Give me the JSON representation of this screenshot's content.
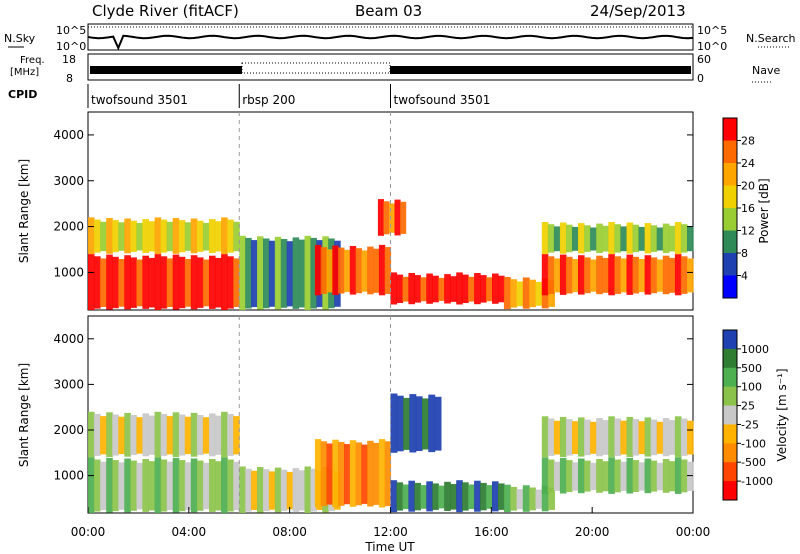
{
  "header": {
    "station": "Clyde River (fitACF)",
    "beam": "Beam 03",
    "date": "24/Sep/2013"
  },
  "noise_panel": {
    "left_label": "N.Sky",
    "right_label": "N.Search",
    "left_ticks": [
      "10^5",
      "10^0"
    ],
    "right_ticks": [
      "10^5",
      "10^0"
    ]
  },
  "freq_panel": {
    "left_label": "Freq.",
    "left_unit": "[MHz]",
    "right_label": "Nave",
    "left_ticks": [
      "18",
      "8"
    ],
    "right_ticks": [
      "60",
      "0"
    ]
  },
  "cpid": {
    "label": "CPID",
    "segments": [
      {
        "name": "twofsound 3501",
        "start_h": 0,
        "end_h": 6
      },
      {
        "name": "rbsp 200",
        "start_h": 6,
        "end_h": 12
      },
      {
        "name": "twofsound 3501",
        "start_h": 12,
        "end_h": 24
      }
    ]
  },
  "chart_data": [
    {
      "type": "heatmap",
      "title": "",
      "ylabel": "Slant Range [km]",
      "xlabel": "Time UT",
      "xlim": [
        0,
        24
      ],
      "ylim": [
        180,
        4500
      ],
      "yticks": [
        "1000",
        "2000",
        "3000",
        "4000"
      ],
      "colorbar": {
        "label": "Power [dB]",
        "ticks": [
          "28",
          "24",
          "20",
          "16",
          "12",
          "8",
          "4"
        ],
        "colors": [
          "#ff0000",
          "#ff6a00",
          "#ffa500",
          "#f0d000",
          "#9acd32",
          "#2e8b57",
          "#1e40b0",
          "#0000ff"
        ]
      },
      "regions": [
        {
          "t0": 0.0,
          "t1": 6.0,
          "r0": 180,
          "r1": 1400,
          "level": 0
        },
        {
          "t0": 0.0,
          "t1": 6.0,
          "r0": 1400,
          "r1": 2200,
          "level": 3
        },
        {
          "t0": 6.0,
          "t1": 10.0,
          "r0": 180,
          "r1": 1800,
          "level": 5
        },
        {
          "t0": 9.0,
          "t1": 12.0,
          "r0": 500,
          "r1": 1600,
          "level": 1
        },
        {
          "t0": 12.0,
          "t1": 16.5,
          "r0": 300,
          "r1": 1000,
          "level": 0
        },
        {
          "t0": 11.5,
          "t1": 12.6,
          "r0": 1800,
          "r1": 2600,
          "level": 1
        },
        {
          "t0": 16.5,
          "t1": 18.5,
          "r0": 200,
          "r1": 900,
          "level": 2
        },
        {
          "t0": 18.0,
          "t1": 24.0,
          "r0": 500,
          "r1": 1400,
          "level": 1
        },
        {
          "t0": 18.0,
          "t1": 24.0,
          "r0": 1400,
          "r1": 2100,
          "level": 4
        }
      ]
    },
    {
      "type": "heatmap",
      "title": "",
      "ylabel": "Slant Range [km]",
      "xlabel": "Time UT",
      "xlim": [
        0,
        24
      ],
      "ylim": [
        180,
        4500
      ],
      "yticks": [
        "1000",
        "2000",
        "3000",
        "4000"
      ],
      "xticks": [
        "00:00",
        "04:00",
        "08:00",
        "12:00",
        "16:00",
        "20:00",
        "00:00"
      ],
      "colorbar": {
        "label": "Velocity [m s⁻¹]",
        "ticks": [
          "1000",
          "500",
          "100",
          "25",
          "-25",
          "-100",
          "-500",
          "-1000"
        ],
        "colors": [
          "#1e40b0",
          "#2e7d32",
          "#4caf50",
          "#8bc34a",
          "#c8c8c8",
          "#ffb300",
          "#ff8c00",
          "#ff4500",
          "#ff0000"
        ]
      },
      "regions": [
        {
          "t0": 0.0,
          "t1": 6.0,
          "r0": 180,
          "r1": 1400,
          "level": 3
        },
        {
          "t0": 0.0,
          "t1": 6.0,
          "r0": 1400,
          "r1": 2400,
          "level": 4
        },
        {
          "t0": 6.0,
          "t1": 10.0,
          "r0": 180,
          "r1": 1200,
          "level": 4
        },
        {
          "t0": 9.0,
          "t1": 12.0,
          "r0": 300,
          "r1": 1800,
          "level": 6
        },
        {
          "t0": 12.0,
          "t1": 16.5,
          "r0": 200,
          "r1": 900,
          "level": 1
        },
        {
          "t0": 12.0,
          "t1": 14.0,
          "r0": 1500,
          "r1": 2800,
          "level": 0
        },
        {
          "t0": 16.5,
          "t1": 18.5,
          "r0": 200,
          "r1": 800,
          "level": 3
        },
        {
          "t0": 18.0,
          "t1": 24.0,
          "r0": 600,
          "r1": 1400,
          "level": 3
        },
        {
          "t0": 18.0,
          "t1": 24.0,
          "r0": 1400,
          "r1": 2300,
          "level": 4
        }
      ]
    }
  ],
  "xaxis": {
    "label": "Time UT",
    "ticks": [
      "00:00",
      "04:00",
      "08:00",
      "12:00",
      "16:00",
      "20:00",
      "00:00"
    ]
  }
}
